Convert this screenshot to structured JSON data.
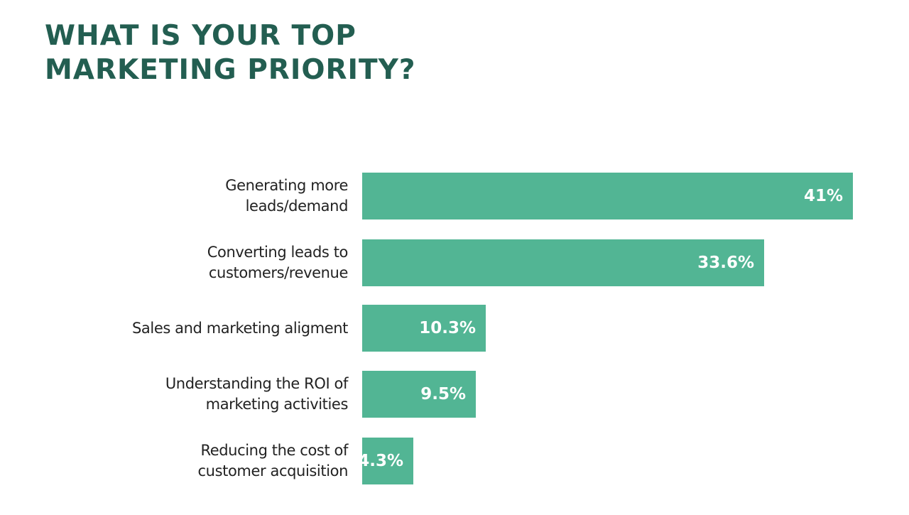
{
  "title": {
    "line1": "WHAT IS YOUR TOP",
    "line2": "MARKETING PRIORITY?"
  },
  "colors": {
    "title": "#235e51",
    "bar": "#52b594",
    "label": "#222222",
    "value": "#ffffff"
  },
  "chart_data": {
    "type": "bar",
    "orientation": "horizontal",
    "title": "WHAT IS YOUR TOP MARKETING PRIORITY?",
    "xlabel": "",
    "ylabel": "",
    "grid": false,
    "legend": null,
    "unit": "%",
    "categories": [
      "Generating more leads/demand",
      "Converting leads to customers/revenue",
      "Sales and marketing aligment",
      "Understanding the ROI of marketing activities",
      "Reducing the cost of customer acquisition"
    ],
    "values": [
      41,
      33.6,
      10.3,
      9.5,
      4.3
    ]
  },
  "rows": [
    {
      "label_line1": "Generating more",
      "label_line2": "leads/demand",
      "value_label": "41%",
      "value": 41
    },
    {
      "label_line1": "Converting leads to",
      "label_line2": "customers/revenue",
      "value_label": "33.6%",
      "value": 33.6
    },
    {
      "label_line1": "Sales and marketing aligment",
      "label_line2": "",
      "value_label": "10.3%",
      "value": 10.3
    },
    {
      "label_line1": "Understanding the ROI of",
      "label_line2": "marketing activities",
      "value_label": "9.5%",
      "value": 9.5
    },
    {
      "label_line1": "Reducing the cost of",
      "label_line2": "customer acquisition",
      "value_label": "4.3%",
      "value": 4.3
    }
  ]
}
